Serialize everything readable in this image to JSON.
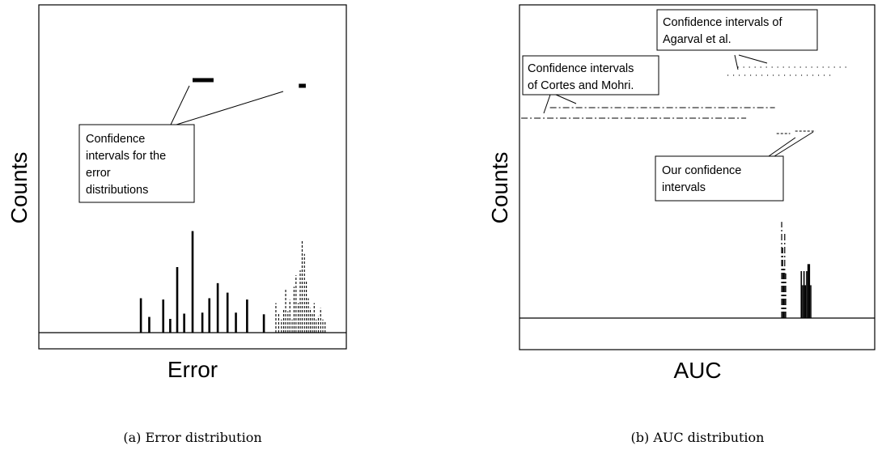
{
  "chart_data": [
    {
      "type": "bar",
      "panel": "(a)",
      "xlabel": "Error",
      "ylabel": "Counts",
      "caption": "(a) Error distribution",
      "annotations": [
        {
          "lines": [
            "Confidence",
            "intervals for the",
            "error",
            "distributions"
          ]
        }
      ],
      "series": [
        {
          "style": "solid",
          "bars": [
            [
              0.365,
              0.105
            ],
            [
              0.395,
              0.048
            ],
            [
              0.445,
              0.101
            ],
            [
              0.47,
              0.042
            ],
            [
              0.495,
              0.2
            ],
            [
              0.52,
              0.058
            ],
            [
              0.55,
              0.31
            ],
            [
              0.585,
              0.061
            ],
            [
              0.61,
              0.105
            ],
            [
              0.64,
              0.151
            ],
            [
              0.675,
              0.122
            ],
            [
              0.705,
              0.061
            ],
            [
              0.745,
              0.101
            ],
            [
              0.805,
              0.056
            ]
          ],
          "interval": [
            0.55,
            0.625
          ]
        },
        {
          "style": "dashed",
          "bars": [
            [
              0.848,
              0.09
            ],
            [
              0.858,
              0.06
            ],
            [
              0.868,
              0.04
            ],
            [
              0.876,
              0.072
            ],
            [
              0.883,
              0.135
            ],
            [
              0.891,
              0.065
            ],
            [
              0.898,
              0.1
            ],
            [
              0.906,
              0.04
            ],
            [
              0.913,
              0.14
            ],
            [
              0.92,
              0.175
            ],
            [
              0.928,
              0.09
            ],
            [
              0.935,
              0.19
            ],
            [
              0.942,
              0.28
            ],
            [
              0.95,
              0.24
            ],
            [
              0.957,
              0.16
            ],
            [
              0.964,
              0.105
            ],
            [
              0.971,
              0.075
            ],
            [
              0.978,
              0.06
            ],
            [
              0.985,
              0.09
            ],
            [
              0.992,
              0.04
            ],
            [
              1.0,
              0.05
            ],
            [
              1.008,
              0.075
            ],
            [
              1.016,
              0.04
            ],
            [
              1.024,
              0.035
            ]
          ],
          "interval": [
            0.93,
            0.955
          ]
        }
      ]
    },
    {
      "type": "bar",
      "panel": "(b)",
      "xlabel": "AUC",
      "ylabel": "Counts",
      "caption": "(b) AUC distribution",
      "annotations": [
        {
          "lines": [
            "Confidence intervals of",
            "Agarval et al."
          ]
        },
        {
          "lines": [
            "Confidence intervals",
            "of Cortes and Mohri."
          ]
        },
        {
          "lines": [
            "Our confidence",
            "intervals"
          ]
        }
      ],
      "series": [
        {
          "style": "dashdot",
          "bars": [
            [
              0.775,
              0.41
            ],
            [
              0.778,
              0.3
            ],
            [
              0.781,
              0.22
            ],
            [
              0.784,
              0.36
            ],
            [
              0.787,
              0.19
            ]
          ],
          "interval_agarval": [
            0.615,
            0.92
          ],
          "interval_cortes_mohri": [
            0.005,
            0.67
          ],
          "interval_ours": [
            0.76,
            0.8
          ]
        },
        {
          "style": "solid",
          "bars": [
            [
              0.833,
              0.2
            ],
            [
              0.837,
              0.14
            ],
            [
              0.841,
              0.2
            ],
            [
              0.845,
              0.14
            ],
            [
              0.849,
              0.2
            ],
            [
              0.853,
              0.23
            ],
            [
              0.857,
              0.23
            ],
            [
              0.861,
              0.14
            ]
          ],
          "interval_agarval": [
            0.645,
            0.975
          ],
          "interval_cortes_mohri": [
            0.09,
            0.755
          ],
          "interval_ours": [
            0.815,
            0.875
          ]
        }
      ]
    }
  ]
}
